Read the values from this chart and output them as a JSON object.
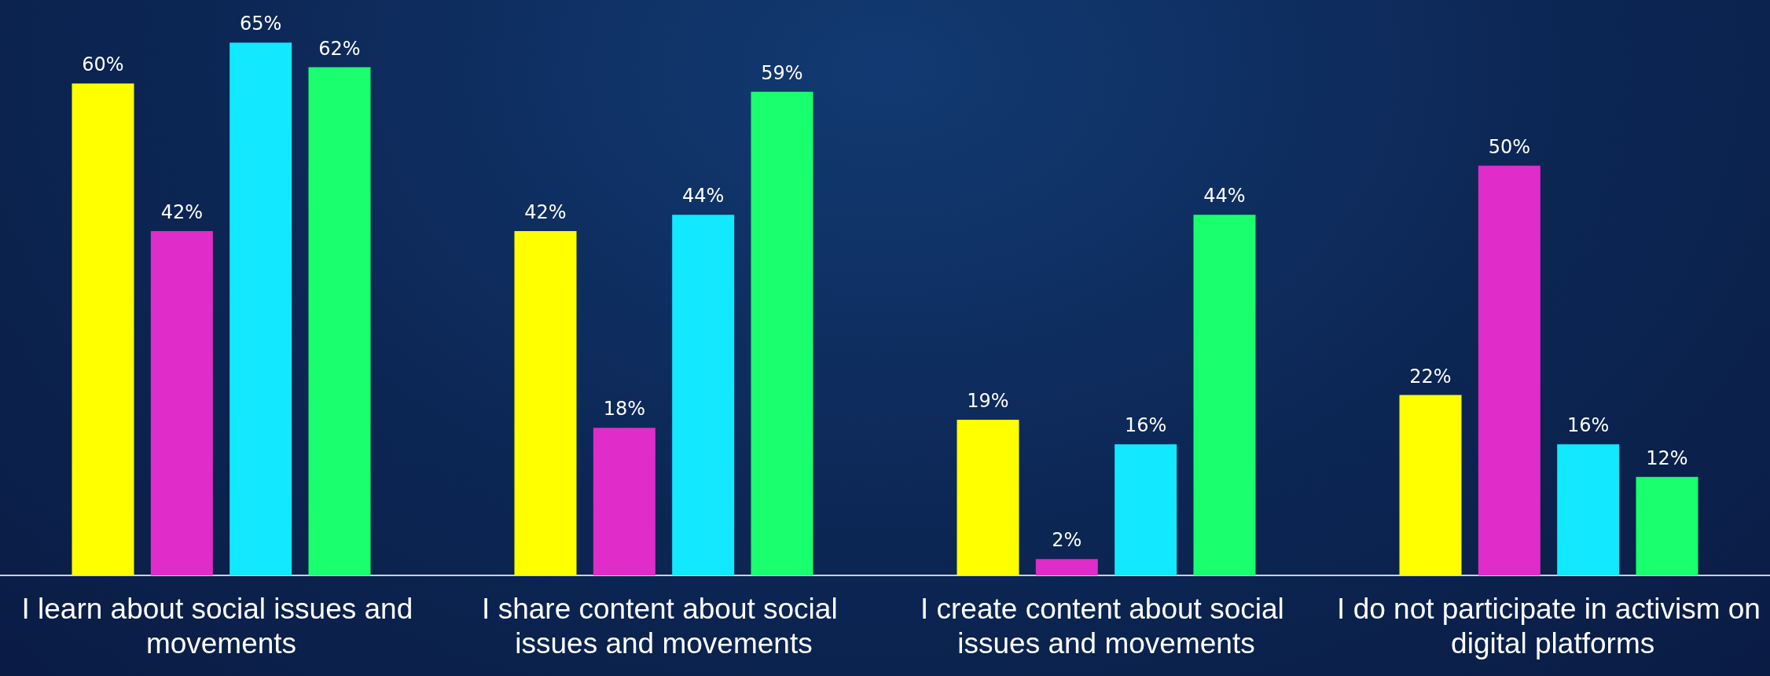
{
  "chart_data": {
    "type": "bar",
    "categories": [
      "I learn about social issues and movements",
      "I share content about social issues and movements",
      "I create content about social issues and movements",
      "I do not participate in activism on digital platforms"
    ],
    "series": [
      {
        "color": "#ffff00",
        "values": [
          60,
          42,
          19,
          22
        ],
        "value_labels": [
          "60%",
          "42%",
          "19%",
          "22%"
        ]
      },
      {
        "color": "#e02cc8",
        "values": [
          42,
          18,
          2,
          50
        ],
        "value_labels": [
          "42%",
          "18%",
          "2%",
          "50%"
        ]
      },
      {
        "color": "#12e8ff",
        "values": [
          65,
          44,
          16,
          16
        ],
        "value_labels": [
          "65%",
          "44%",
          "16%",
          "16%"
        ]
      },
      {
        "color": "#1aff6e",
        "values": [
          62,
          59,
          44,
          12
        ],
        "value_labels": [
          "62%",
          "59%",
          "44%",
          "12%"
        ]
      }
    ]
  }
}
